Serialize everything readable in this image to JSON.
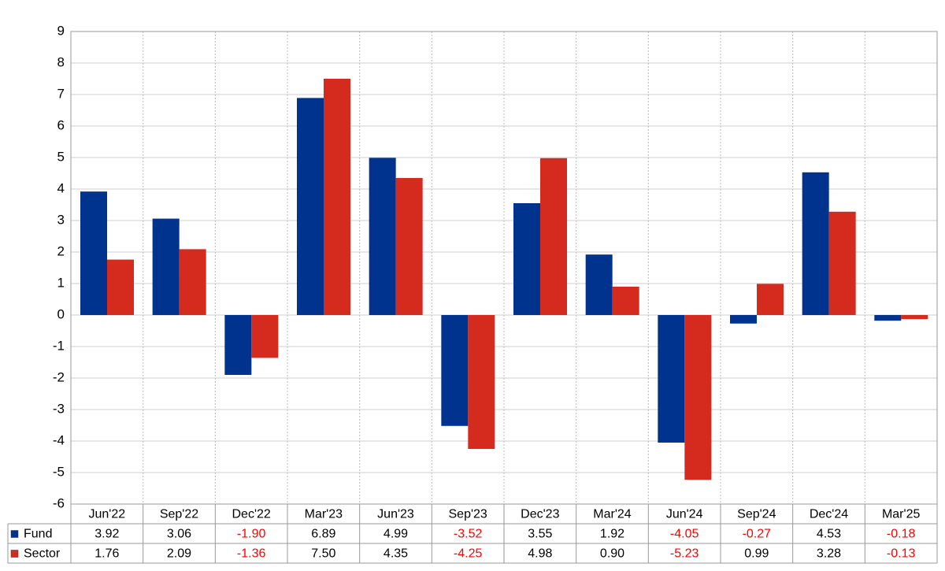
{
  "chart_data": {
    "type": "bar",
    "categories": [
      "Jun'22",
      "Sep'22",
      "Dec'22",
      "Mar'23",
      "Jun'23",
      "Sep'23",
      "Dec'23",
      "Mar'24",
      "Jun'24",
      "Sep'24",
      "Dec'24",
      "Mar'25"
    ],
    "series": [
      {
        "name": "Fund",
        "color": "#00338d",
        "values": [
          3.92,
          3.06,
          -1.9,
          6.89,
          4.99,
          -3.52,
          3.55,
          1.92,
          -4.05,
          -0.27,
          4.53,
          -0.18
        ],
        "value_labels": [
          "3.92",
          "3.06",
          "-1.90",
          "6.89",
          "4.99",
          "-3.52",
          "3.55",
          "1.92",
          "-4.05",
          "-0.27",
          "4.53",
          "-0.18"
        ]
      },
      {
        "name": "Sector",
        "color": "#d52b1e",
        "values": [
          1.76,
          2.09,
          -1.36,
          7.5,
          4.35,
          -4.25,
          4.98,
          0.9,
          -5.23,
          0.99,
          3.28,
          -0.13
        ],
        "value_labels": [
          "1.76",
          "2.09",
          "-1.36",
          "7.50",
          "4.35",
          "-4.25",
          "4.98",
          "0.90",
          "-5.23",
          "0.99",
          "3.28",
          "-0.13"
        ]
      }
    ],
    "ylim": [
      -6,
      9
    ],
    "yticks": [
      -6,
      -5,
      -4,
      -3,
      -2,
      -1,
      0,
      1,
      2,
      3,
      4,
      5,
      6,
      7,
      8,
      9
    ],
    "grid": true,
    "negative_label_color": "#ff0000"
  }
}
